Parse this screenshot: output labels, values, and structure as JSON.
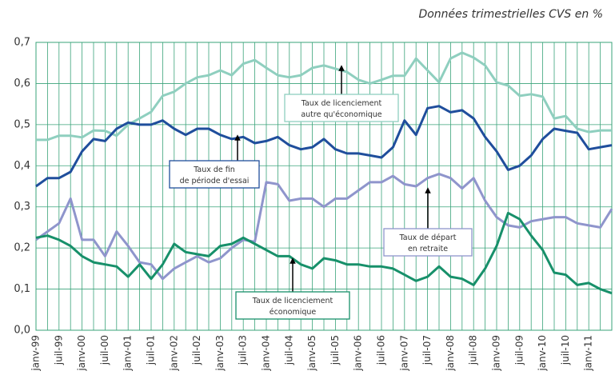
{
  "chart_data": {
    "type": "line",
    "subtitle": "Données trimestrielles CVS en %",
    "categories": [
      "janv-99",
      null,
      "juil-99",
      null,
      "janv-00",
      null,
      "juil-00",
      null,
      "janv-01",
      null,
      "juil-01",
      null,
      "janv-02",
      null,
      "juil-02",
      null,
      "janv-03",
      null,
      "juil-03",
      null,
      "janv-04",
      null,
      "juil-04",
      null,
      "janv-05",
      null,
      "juil-05",
      null,
      "janv-06",
      null,
      "juil-06",
      null,
      "janv-07",
      null,
      "juil-07",
      null,
      "janv-08",
      null,
      "juil-08",
      null,
      "janv-09",
      null,
      "juil-09",
      null,
      "janv-10",
      null,
      "juil-10",
      null,
      "janv-11",
      null,
      null
    ],
    "ylim": [
      0,
      0.7
    ],
    "yticks": [
      {
        "value": 0,
        "label": "0,0"
      },
      {
        "value": 0.1,
        "label": "0,1"
      },
      {
        "value": 0.2,
        "label": "0,2"
      },
      {
        "value": 0.3,
        "label": "0,3"
      },
      {
        "value": 0.4,
        "label": "0,4"
      },
      {
        "value": 0.5,
        "label": "0,5"
      },
      {
        "value": 0.6,
        "label": "0,6"
      },
      {
        "value": 0.7,
        "label": "0,7"
      }
    ],
    "grid": true,
    "series": [
      {
        "name": [
          "Taux de licenciement",
          "autre qu'économique"
        ],
        "color": "#8fcfbf",
        "values": [
          0.463,
          0.463,
          0.473,
          0.473,
          0.469,
          0.486,
          0.485,
          0.473,
          0.5,
          0.515,
          0.531,
          0.57,
          0.58,
          0.6,
          0.615,
          0.62,
          0.632,
          0.62,
          0.648,
          0.657,
          0.638,
          0.62,
          0.615,
          0.62,
          0.638,
          0.644,
          0.636,
          0.628,
          0.609,
          0.6,
          0.609,
          0.619,
          0.619,
          0.661,
          0.632,
          0.603,
          0.661,
          0.675,
          0.663,
          0.644,
          0.603,
          0.595,
          0.57,
          0.574,
          0.568,
          0.515,
          0.521,
          0.49,
          0.482,
          0.486,
          0.486
        ]
      },
      {
        "name": [
          "Taux de fin",
          "de période d'essai"
        ],
        "color": "#1f4e9c",
        "values": [
          0.35,
          0.37,
          0.37,
          0.385,
          0.435,
          0.465,
          0.46,
          0.49,
          0.505,
          0.5,
          0.5,
          0.51,
          0.49,
          0.475,
          0.49,
          0.49,
          0.475,
          0.465,
          0.47,
          0.455,
          0.46,
          0.47,
          0.45,
          0.44,
          0.445,
          0.465,
          0.44,
          0.43,
          0.43,
          0.425,
          0.42,
          0.445,
          0.51,
          0.475,
          0.54,
          0.545,
          0.53,
          0.535,
          0.515,
          0.47,
          0.435,
          0.39,
          0.4,
          0.425,
          0.465,
          0.49,
          0.485,
          0.48,
          0.44,
          0.445,
          0.45
        ]
      },
      {
        "name": [
          "Taux de départ",
          "en retraite"
        ],
        "color": "#8f95cc",
        "values": [
          0.22,
          0.24,
          0.26,
          0.32,
          0.22,
          0.22,
          0.18,
          0.24,
          0.205,
          0.165,
          0.16,
          0.125,
          0.15,
          0.165,
          0.18,
          0.165,
          0.175,
          0.2,
          0.22,
          0.215,
          0.36,
          0.355,
          0.315,
          0.32,
          0.32,
          0.3,
          0.32,
          0.32,
          0.34,
          0.36,
          0.36,
          0.375,
          0.355,
          0.35,
          0.37,
          0.38,
          0.37,
          0.345,
          0.37,
          0.315,
          0.275,
          0.255,
          0.25,
          0.265,
          0.27,
          0.275,
          0.275,
          0.26,
          0.255,
          0.25,
          0.295
        ]
      },
      {
        "name": [
          "Taux de licenciement",
          "économique"
        ],
        "color": "#17906a",
        "values": [
          0.225,
          0.23,
          0.22,
          0.205,
          0.18,
          0.165,
          0.16,
          0.155,
          0.13,
          0.16,
          0.125,
          0.16,
          0.21,
          0.19,
          0.185,
          0.18,
          0.205,
          0.21,
          0.225,
          0.21,
          0.195,
          0.18,
          0.18,
          0.16,
          0.15,
          0.175,
          0.17,
          0.16,
          0.16,
          0.155,
          0.155,
          0.15,
          0.135,
          0.12,
          0.13,
          0.155,
          0.13,
          0.125,
          0.11,
          0.15,
          0.205,
          0.285,
          0.27,
          0.23,
          0.195,
          0.14,
          0.135,
          0.11,
          0.115,
          0.1,
          0.09
        ]
      }
    ]
  }
}
